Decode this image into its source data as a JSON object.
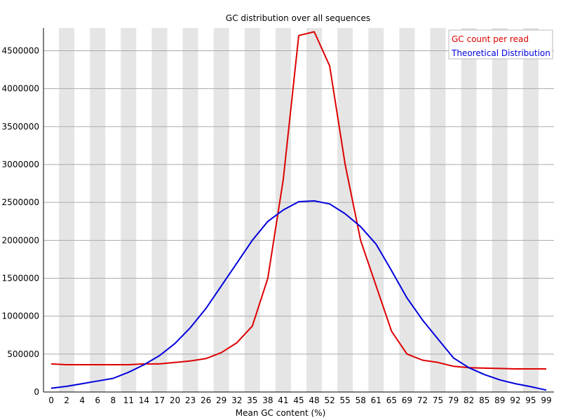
{
  "chart_data": {
    "type": "line",
    "title": "GC distribution over all sequences",
    "xlabel": "Mean GC content (%)",
    "ylabel": "",
    "xlim": [
      0,
      100
    ],
    "ylim": [
      0,
      4800000
    ],
    "grid": true,
    "legend_position": "top-right",
    "x_ticks": [
      "0",
      "2",
      "4",
      "6",
      "8",
      "11",
      "14",
      "17",
      "20",
      "23",
      "26",
      "29",
      "32",
      "35",
      "38",
      "41",
      "45",
      "48",
      "52",
      "55",
      "58",
      "61",
      "65",
      "69",
      "72",
      "75",
      "79",
      "82",
      "85",
      "89",
      "92",
      "95",
      "99"
    ],
    "y_ticks": [
      "0",
      "500000",
      "1000000",
      "1500000",
      "2000000",
      "2500000",
      "3000000",
      "3500000",
      "4000000",
      "4500000"
    ],
    "x": [
      0,
      2,
      4,
      6,
      8,
      11,
      14,
      17,
      20,
      23,
      26,
      29,
      32,
      35,
      38,
      41,
      45,
      48,
      52,
      55,
      58,
      61,
      65,
      69,
      72,
      75,
      79,
      82,
      85,
      89,
      92,
      95,
      99
    ],
    "series": [
      {
        "name": "GC count per read",
        "color": "#dd0000",
        "values": [
          370000,
          360000,
          360000,
          360000,
          360000,
          360000,
          370000,
          370000,
          390000,
          410000,
          440000,
          520000,
          650000,
          870000,
          1500000,
          2800000,
          4700000,
          4750000,
          4300000,
          3000000,
          2000000,
          1400000,
          800000,
          500000,
          420000,
          390000,
          340000,
          320000,
          315000,
          310000,
          305000,
          305000,
          305000
        ]
      },
      {
        "name": "Theoretical Distribution",
        "color": "#0000dd",
        "values": [
          50000,
          75000,
          110000,
          145000,
          180000,
          260000,
          360000,
          480000,
          640000,
          850000,
          1100000,
          1400000,
          1700000,
          2000000,
          2250000,
          2400000,
          2510000,
          2520000,
          2480000,
          2350000,
          2180000,
          1950000,
          1600000,
          1240000,
          950000,
          700000,
          450000,
          320000,
          230000,
          160000,
          110000,
          70000,
          25000
        ]
      }
    ]
  }
}
